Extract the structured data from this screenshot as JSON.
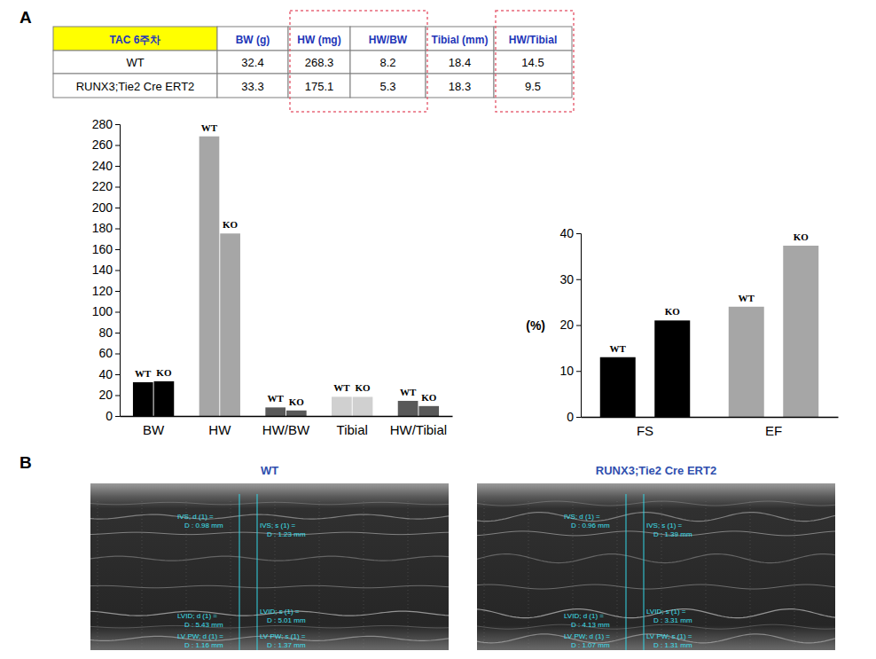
{
  "panel_labels": [
    "A",
    "B"
  ],
  "table": {
    "header": [
      "TAC 6주차",
      "BW (g)",
      "HW (mg)",
      "HW/BW",
      "Tibial (mm)",
      "HW/Tibial"
    ],
    "rows": [
      [
        "WT",
        32.4,
        268.3,
        8.2,
        18.4,
        14.5
      ],
      [
        "RUNX3;Tie2 Cre ERT2",
        33.3,
        175.1,
        5.3,
        18.3,
        9.5
      ]
    ]
  },
  "chart_data": [
    {
      "type": "bar",
      "categories": [
        "BW",
        "HW",
        "HW/BW",
        "Tibial",
        "HW/Tibial"
      ],
      "series": [
        {
          "name": "WT",
          "values": [
            32.4,
            268.3,
            8.2,
            18.4,
            14.5
          ],
          "colors": [
            "#000000",
            "#a6a6a6",
            "#595959",
            "#d0d0d0",
            "#595959"
          ]
        },
        {
          "name": "KO",
          "values": [
            33.3,
            175.1,
            5.3,
            18.3,
            9.5
          ],
          "colors": [
            "#000000",
            "#a6a6a6",
            "#595959",
            "#d0d0d0",
            "#595959"
          ]
        }
      ],
      "ylim": [
        0,
        280
      ],
      "yticks": [
        0,
        20,
        40,
        60,
        80,
        100,
        120,
        140,
        160,
        180,
        200,
        220,
        240,
        260,
        280
      ],
      "grid": false
    },
    {
      "type": "bar",
      "y_label": "(%)",
      "categories": [
        "FS",
        "EF"
      ],
      "series": [
        {
          "name": "WT",
          "values": [
            13,
            24
          ],
          "colors": [
            "#000000",
            "#a6a6a6"
          ]
        },
        {
          "name": "KO",
          "values": [
            21,
            37.3
          ],
          "colors": [
            "#000000",
            "#a6a6a6"
          ]
        }
      ],
      "ylim": [
        0,
        40
      ],
      "yticks": [
        0,
        10,
        20,
        30,
        40
      ],
      "grid": false
    }
  ],
  "echo_images": [
    {
      "title": "WT",
      "measurements": [
        {
          "label": "IVS; d (1) =",
          "value": "D : 0.98 mm"
        },
        {
          "label": "IVS; s (1) =",
          "value": "D : 1.23 mm"
        },
        {
          "label": "LVID; d (1) =",
          "value": "D : 5.43 mm"
        },
        {
          "label": "LVID; s (1) =",
          "value": "D : 5.01 mm"
        },
        {
          "label": "LV PW; d (1) =",
          "value": "D : 1.16 mm"
        },
        {
          "label": "LV PW; s (1) =",
          "value": "D : 1.37 mm"
        }
      ]
    },
    {
      "title": "RUNX3;Tie2 Cre ERT2",
      "measurements": [
        {
          "label": "IVS; d (1) =",
          "value": "D : 0.96 mm"
        },
        {
          "label": "IVS; s (1) =",
          "value": "D : 1.39 mm"
        },
        {
          "label": "LVID; d (1) =",
          "value": "D : 4.13 mm"
        },
        {
          "label": "LVID; s (1) =",
          "value": "D : 3.31 mm"
        },
        {
          "label": "LV PW; d (1) =",
          "value": "D : 1.07 mm"
        },
        {
          "label": "LV PW; s (1) =",
          "value": "D : 1.31 mm"
        }
      ]
    }
  ]
}
